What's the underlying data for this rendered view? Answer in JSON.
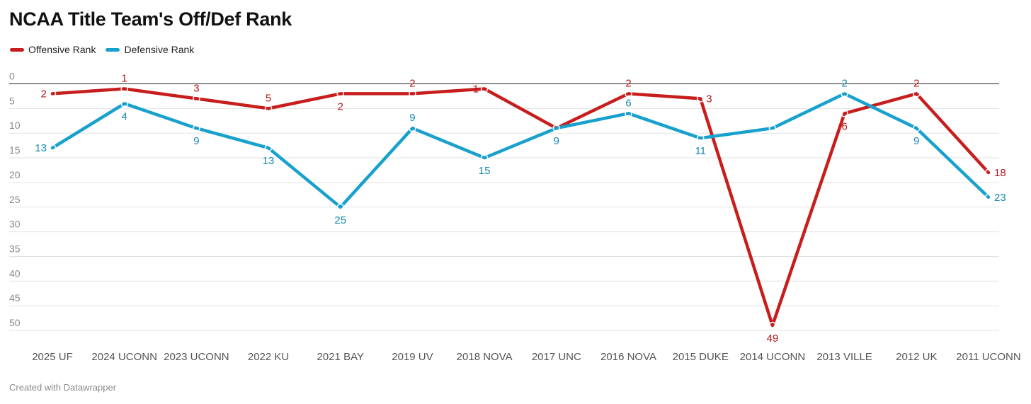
{
  "chart_data": {
    "type": "line",
    "title": "NCAA Title Team's Off/Def Rank",
    "categories": [
      "2025 UF",
      "2024 UCONN",
      "2023 UCONN",
      "2022 KU",
      "2021 BAY",
      "2019 UV",
      "2018 NOVA",
      "2017 UNC",
      "2016 NOVA",
      "2015 DUKE",
      "2014 UCONN",
      "2013 VILLE",
      "2012 UK",
      "2011 UCONN"
    ],
    "series": [
      {
        "name": "Offensive Rank",
        "color": "#c71e1d",
        "values": [
          2,
          1,
          3,
          5,
          2,
          2,
          1,
          9,
          2,
          3,
          49,
          6,
          2,
          18
        ],
        "labels": [
          "2",
          "1",
          "3",
          "5",
          "2",
          "2",
          "1",
          "",
          "2",
          "3",
          "49",
          "6",
          "2",
          "18"
        ],
        "label_pos": [
          "left",
          "above",
          "above",
          "above",
          "below",
          "above",
          "left",
          "none",
          "above",
          "right",
          "below",
          "below",
          "above",
          "right"
        ]
      },
      {
        "name": "Defensive Rank",
        "color": "#18a1cd",
        "values": [
          13,
          4,
          9,
          13,
          25,
          9,
          15,
          9,
          6,
          11,
          9,
          2,
          9,
          23
        ],
        "labels": [
          "13",
          "4",
          "9",
          "13",
          "25",
          "9",
          "15",
          "9",
          "6",
          "11",
          "",
          "2",
          "9",
          "23"
        ],
        "label_pos": [
          "left",
          "below",
          "below",
          "below",
          "below",
          "above",
          "below",
          "below",
          "above",
          "below",
          "none",
          "above",
          "below",
          "right"
        ]
      }
    ],
    "yticks": [
      0,
      5,
      10,
      15,
      20,
      25,
      30,
      35,
      40,
      45,
      50
    ],
    "ylim": [
      0,
      50
    ],
    "y_inverted": true,
    "legend": "top-left"
  },
  "legend": {
    "offense": "Offensive Rank",
    "defense": "Defensive Rank"
  },
  "credit": "Created with Datawrapper"
}
